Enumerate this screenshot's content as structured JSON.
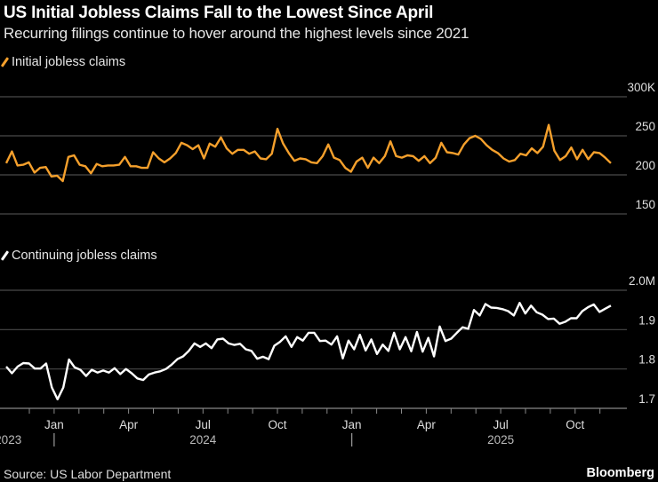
{
  "header": {
    "title": "US Initial Jobless Claims Fall to the Lowest Since April",
    "subtitle": "Recurring filings continue to hover around the highest levels since 2021"
  },
  "footer": {
    "source": "Source: US Labor Department",
    "brand": "Bloomberg"
  },
  "colors": {
    "initial": "#f5a02c",
    "continuing": "#ffffff",
    "grid": "#4a4a4a",
    "axis": "#888888"
  },
  "chart_data": [
    {
      "type": "line",
      "title": "Initial jobless claims",
      "legend": "Initial jobless claims",
      "frequency": "weekly",
      "y_ticks": [
        "300K",
        "250",
        "200",
        "150"
      ],
      "y_tick_values": [
        300,
        250,
        200,
        150
      ],
      "ylim": [
        150,
        300
      ],
      "unit": "thousands",
      "values": [
        215,
        230,
        212,
        213,
        216,
        203,
        209,
        210,
        198,
        199,
        192,
        223,
        225,
        213,
        211,
        202,
        214,
        211,
        212,
        212,
        213,
        223,
        211,
        211,
        209,
        209,
        229,
        221,
        216,
        221,
        228,
        241,
        238,
        233,
        238,
        221,
        240,
        236,
        248,
        234,
        227,
        232,
        232,
        227,
        230,
        221,
        220,
        227,
        259,
        240,
        228,
        218,
        221,
        220,
        216,
        215,
        224,
        239,
        222,
        219,
        209,
        204,
        217,
        222,
        209,
        222,
        215,
        224,
        243,
        224,
        222,
        225,
        224,
        218,
        224,
        215,
        222,
        241,
        229,
        228,
        226,
        239,
        247,
        250,
        246,
        238,
        232,
        228,
        221,
        217,
        219,
        227,
        225,
        234,
        228,
        236,
        264,
        231,
        219,
        224,
        235,
        220,
        232,
        220,
        229,
        228,
        222,
        215
      ]
    },
    {
      "type": "line",
      "title": "Continuing jobless claims",
      "legend": "Continuing jobless claims",
      "frequency": "weekly",
      "y_ticks": [
        "2.0M",
        "1.9",
        "1.8",
        "1.7"
      ],
      "y_tick_values": [
        2.0,
        1.9,
        1.8,
        1.7
      ],
      "ylim": [
        1.7,
        2.0
      ],
      "unit": "millions",
      "values": [
        1.806,
        1.789,
        1.806,
        1.815,
        1.814,
        1.801,
        1.801,
        1.814,
        1.753,
        1.723,
        1.753,
        1.824,
        1.804,
        1.798,
        1.782,
        1.798,
        1.791,
        1.796,
        1.791,
        1.802,
        1.787,
        1.8,
        1.789,
        1.776,
        1.772,
        1.786,
        1.791,
        1.794,
        1.8,
        1.811,
        1.825,
        1.832,
        1.846,
        1.865,
        1.856,
        1.865,
        1.853,
        1.875,
        1.877,
        1.865,
        1.861,
        1.864,
        1.85,
        1.846,
        1.826,
        1.831,
        1.825,
        1.859,
        1.869,
        1.883,
        1.856,
        1.881,
        1.872,
        1.892,
        1.892,
        1.871,
        1.872,
        1.862,
        1.883,
        1.827,
        1.872,
        1.85,
        1.887,
        1.847,
        1.875,
        1.838,
        1.862,
        1.846,
        1.892,
        1.85,
        1.881,
        1.845,
        1.894,
        1.844,
        1.879,
        1.832,
        1.908,
        1.871,
        1.877,
        1.892,
        1.906,
        1.902,
        1.95,
        1.936,
        1.965,
        1.956,
        1.955,
        1.952,
        1.947,
        1.936,
        1.968,
        1.941,
        1.961,
        1.944,
        1.938,
        1.927,
        1.928,
        1.915,
        1.92,
        1.929,
        1.929,
        1.947,
        1.957,
        1.964,
        1.945,
        1.953,
        1.961
      ]
    }
  ],
  "x_axis": {
    "month_labels": [
      {
        "label": "Jan",
        "month_index": 1
      },
      {
        "label": "Apr",
        "month_index": 4
      },
      {
        "label": "Jul",
        "month_index": 7
      },
      {
        "label": "Oct",
        "month_index": 10
      },
      {
        "label": "Jan",
        "month_index": 13
      },
      {
        "label": "Apr",
        "month_index": 16
      },
      {
        "label": "Jul",
        "month_index": 19
      },
      {
        "label": "Oct",
        "month_index": 22
      }
    ],
    "tick_count": 24,
    "year_labels": [
      {
        "label": "2023",
        "month_index": -0.1,
        "anchor": "end"
      },
      {
        "label": "2024",
        "month_index": 7,
        "anchor": "middle"
      },
      {
        "label": "2025",
        "month_index": 19,
        "anchor": "middle"
      }
    ],
    "year_separators": [
      1,
      13
    ]
  }
}
